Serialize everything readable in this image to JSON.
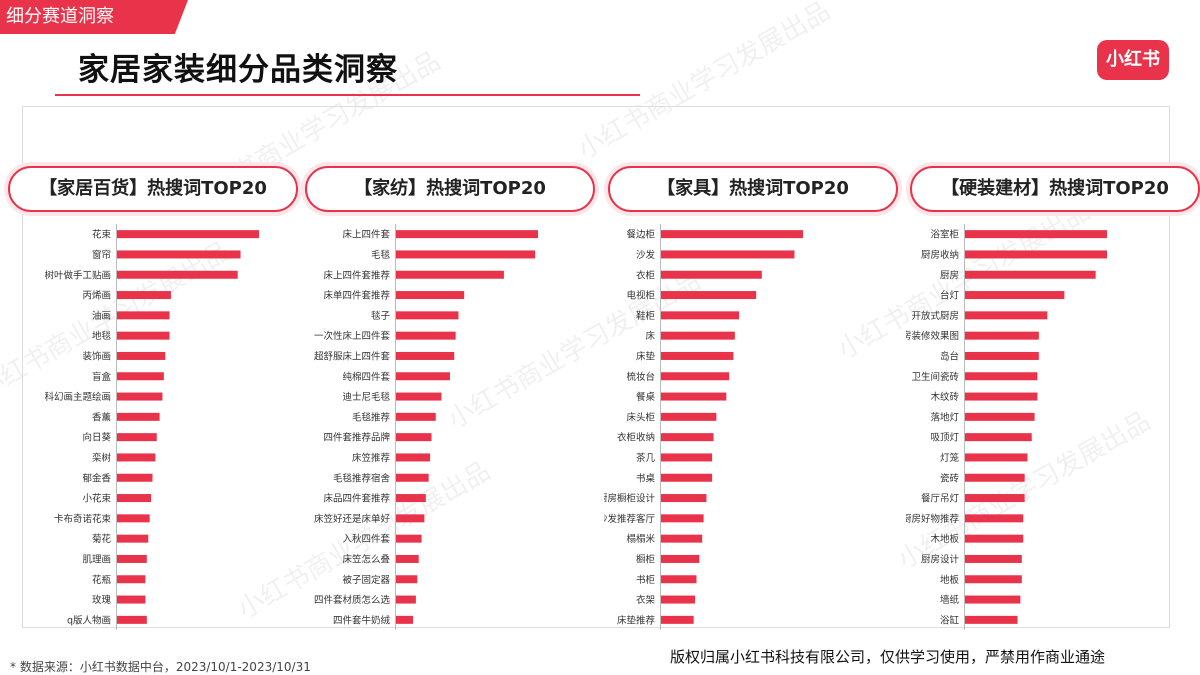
{
  "header": {
    "tag": "细分赛道洞察",
    "title": "家居家装细分品类洞察",
    "logo": "小红书"
  },
  "watermark": "小红书商业学习发展出品",
  "footer": {
    "source": "* 数据来源：小红书数据中台，2023/10/1-2023/10/31",
    "copyright": "版权归属小红书科技有限公司，仅供学习使用，严禁用作商业通途"
  },
  "colors": {
    "accent": "#e8334a",
    "bar": "#e8334a"
  },
  "chart_data": [
    {
      "type": "bar",
      "orientation": "horizontal",
      "title": "【家居百货】热搜词TOP20",
      "categories": [
        "花束",
        "窗帘",
        "树叶做手工贴画",
        "丙烯画",
        "油画",
        "地毯",
        "装饰画",
        "盲盒",
        "科幻画主题绘画",
        "香薰",
        "向日葵",
        "栾树",
        "郁金香",
        "小花束",
        "卡布奇诺花束",
        "菊花",
        "肌理画",
        "花瓶",
        "玫瑰",
        "q版人物画"
      ],
      "values": [
        100,
        87,
        85,
        38,
        37,
        37,
        34,
        33,
        32,
        30,
        28,
        27,
        25,
        24,
        23,
        22,
        21,
        20,
        20,
        21
      ],
      "xlim": [
        0,
        100
      ]
    },
    {
      "type": "bar",
      "orientation": "horizontal",
      "title": "【家纺】热搜词TOP20",
      "categories": [
        "床上四件套",
        "毛毯",
        "床上四件套推荐",
        "床单四件套推荐",
        "毯子",
        "一次性床上四件套",
        "超舒服床上四件套",
        "纯棉四件套",
        "迪士尼毛毯",
        "毛毯推荐",
        "四件套推荐品牌",
        "床笠推荐",
        "毛毯推荐宿舍",
        "床品四件套推荐",
        "床笠好还是床单好",
        "入秋四件套",
        "床笠怎么叠",
        "被子固定器",
        "四件套材质怎么选",
        "四件套牛奶绒"
      ],
      "values": [
        100,
        98,
        76,
        48,
        44,
        42,
        41,
        38,
        32,
        28,
        25,
        24,
        23,
        21,
        20,
        18,
        16,
        15,
        14,
        12
      ],
      "xlim": [
        0,
        100
      ]
    },
    {
      "type": "bar",
      "orientation": "horizontal",
      "title": "【家具】热搜词TOP20",
      "categories": [
        "餐边柜",
        "沙发",
        "衣柜",
        "电视柜",
        "鞋柜",
        "床",
        "床垫",
        "梳妆台",
        "餐桌",
        "床头柜",
        "衣柜收纳",
        "茶几",
        "书桌",
        "厨房橱柜设计",
        "沙发推荐客厅",
        "榻榻米",
        "橱柜",
        "书柜",
        "衣架",
        "床垫推荐"
      ],
      "values": [
        100,
        94,
        71,
        67,
        55,
        52,
        51,
        48,
        46,
        39,
        37,
        36,
        36,
        32,
        30,
        29,
        27,
        25,
        24,
        23
      ],
      "xlim": [
        0,
        100
      ]
    },
    {
      "type": "bar",
      "orientation": "horizontal",
      "title": "【硬装建材】热搜词TOP20",
      "categories": [
        "浴室柜",
        "厨房收纳",
        "厨房",
        "台灯",
        "开放式厨房",
        "厨房装修效果图",
        "岛台",
        "卫生间瓷砖",
        "木纹砖",
        "落地灯",
        "吸顶灯",
        "灯笼",
        "瓷砖",
        "餐厅吊灯",
        "厨房好物推荐",
        "木地板",
        "厨房设计",
        "地板",
        "墙纸",
        "浴缸"
      ],
      "values": [
        100,
        100,
        92,
        70,
        58,
        52,
        52,
        51,
        51,
        49,
        47,
        44,
        42,
        42,
        41,
        41,
        40,
        40,
        39,
        37
      ],
      "xlim": [
        0,
        100
      ]
    }
  ]
}
